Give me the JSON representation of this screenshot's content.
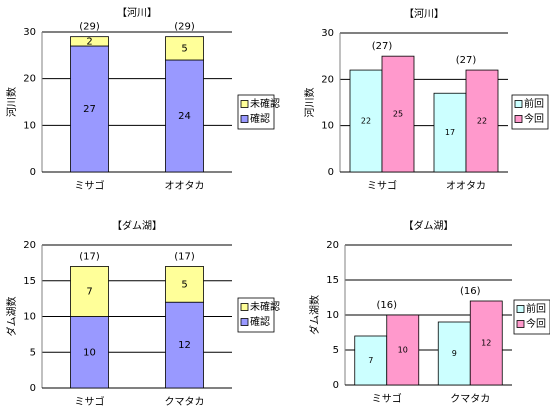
{
  "chart_data": [
    {
      "type": "stacked_bar",
      "title": "【河川】",
      "y_label": "河川数",
      "categories": [
        "ミサゴ",
        "オオタカ"
      ],
      "series": [
        {
          "name": "確認",
          "color": "#9999ff",
          "values": [
            27,
            24
          ]
        },
        {
          "name": "未確認",
          "color": "#ffff99",
          "values": [
            2,
            5
          ]
        }
      ],
      "annotations": [
        "(29)",
        "(29)"
      ],
      "ylim": [
        0,
        30
      ],
      "yticks": [
        0,
        10,
        20,
        30
      ],
      "grid": true,
      "legend": "right"
    },
    {
      "type": "bar",
      "title": "【河川】",
      "y_label": "河川数",
      "categories": [
        "ミサゴ",
        "オオタカ"
      ],
      "series": [
        {
          "name": "前回",
          "color": "#ccffff",
          "values": [
            22,
            17
          ]
        },
        {
          "name": "今回",
          "color": "#ff99cc",
          "values": [
            25,
            22
          ]
        }
      ],
      "annotations": [
        "(27)",
        "(27)"
      ],
      "ylim": [
        0,
        30
      ],
      "yticks": [
        0,
        10,
        20,
        30
      ],
      "grid": true,
      "legend": "right"
    },
    {
      "type": "stacked_bar",
      "title": "【ダム湖】",
      "y_label": "ダム湖数",
      "categories": [
        "ミサゴ",
        "クマタカ"
      ],
      "series": [
        {
          "name": "確認",
          "color": "#9999ff",
          "values": [
            10,
            12
          ]
        },
        {
          "name": "未確認",
          "color": "#ffff99",
          "values": [
            7,
            5
          ]
        }
      ],
      "annotations": [
        "(17)",
        "(17)"
      ],
      "ylim": [
        0,
        20
      ],
      "yticks": [
        0,
        5,
        10,
        15,
        20
      ],
      "grid": true,
      "legend": "right"
    },
    {
      "type": "bar",
      "title": "【ダム湖】",
      "y_label": "ダム湖数",
      "categories": [
        "ミサゴ",
        "クマタカ"
      ],
      "series": [
        {
          "name": "前回",
          "color": "#ccffff",
          "values": [
            7,
            9
          ]
        },
        {
          "name": "今回",
          "color": "#ff99cc",
          "values": [
            10,
            12
          ]
        }
      ],
      "annotations": [
        "(16)",
        "(16)"
      ],
      "ylim": [
        0,
        20
      ],
      "yticks": [
        0,
        5,
        10,
        15,
        20
      ],
      "grid": true,
      "legend": "right"
    }
  ]
}
